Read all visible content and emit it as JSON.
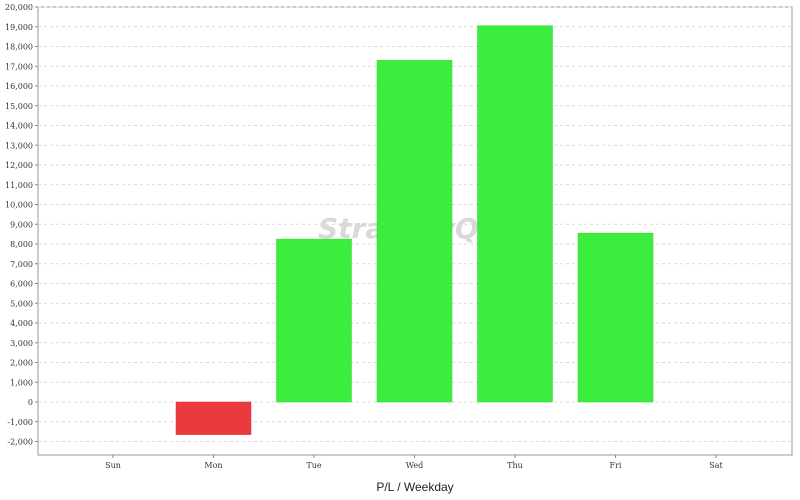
{
  "chart_data": {
    "type": "bar",
    "categories": [
      "Sun",
      "Mon",
      "Tue",
      "Wed",
      "Thu",
      "Fri",
      "Sat"
    ],
    "values": [
      0,
      -1650,
      8250,
      17300,
      19050,
      8550,
      0
    ],
    "xlabel": "P/L / Weekday",
    "ylabel": "",
    "ylim": [
      -2800,
      20000
    ],
    "yticks": [
      -2000,
      -1000,
      0,
      1000,
      2000,
      3000,
      4000,
      5000,
      6000,
      7000,
      8000,
      9000,
      10000,
      11000,
      12000,
      13000,
      14000,
      15000,
      16000,
      17000,
      18000,
      19000,
      20000
    ],
    "grid": true,
    "positive_color": "#3ded3d",
    "negative_color": "#ea3a3e",
    "watermark": "StrategyQuant"
  }
}
